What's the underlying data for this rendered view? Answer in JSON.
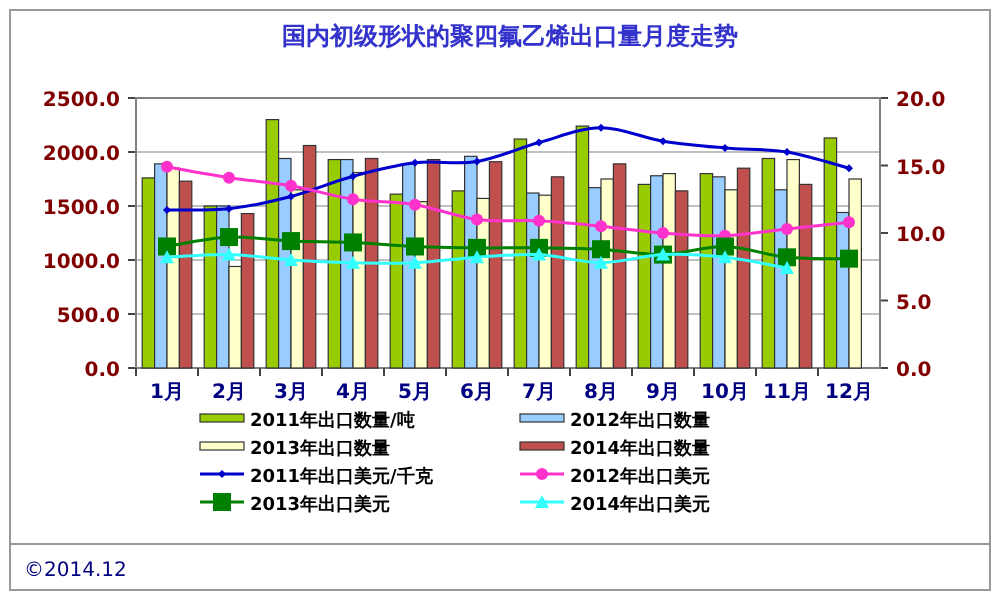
{
  "chart_data": {
    "type": "bar",
    "title": "国内初级形状的聚四氟乙烯出口量月度走势",
    "categories": [
      "1月",
      "2月",
      "3月",
      "4月",
      "5月",
      "6月",
      "7月",
      "8月",
      "9月",
      "10月",
      "11月",
      "12月"
    ],
    "series": [
      {
        "name": "2011年出口数量/吨",
        "color": "#99cc00",
        "values": [
          1760,
          1500,
          2300,
          1930,
          1610,
          1640,
          2120,
          2240,
          1700,
          1800,
          1940,
          2130
        ]
      },
      {
        "name": "2012年出口数量",
        "color": "#99ccff",
        "values": [
          1890,
          1500,
          1940,
          1930,
          1890,
          1960,
          1620,
          1670,
          1780,
          1770,
          1650,
          1440
        ]
      },
      {
        "name": "2013年出口数量",
        "color": "#ffffcc",
        "values": [
          1850,
          940,
          1650,
          1810,
          1540,
          1570,
          1600,
          1750,
          1800,
          1650,
          1930,
          1750
        ]
      },
      {
        "name": "2014年出口数量",
        "color": "#c0504d",
        "values": [
          1730,
          1430,
          2060,
          1940,
          1930,
          1910,
          1770,
          1890,
          1640,
          1850,
          1700,
          null
        ]
      },
      {
        "name": "2011年出口美元/千克",
        "type": "line",
        "axis": "y2",
        "color": "#0000cc",
        "marker": "diamond",
        "values": [
          11.7,
          11.8,
          12.7,
          14.2,
          15.2,
          15.3,
          16.7,
          17.8,
          16.8,
          16.3,
          16.0,
          14.8
        ]
      },
      {
        "name": "2012年出口美元",
        "type": "line",
        "axis": "y2",
        "color": "#ff33cc",
        "marker": "circle",
        "values": [
          14.9,
          14.1,
          13.5,
          12.5,
          12.1,
          11.0,
          10.9,
          10.5,
          10.0,
          9.8,
          10.3,
          10.8
        ]
      },
      {
        "name": "2013年出口美元",
        "type": "line",
        "axis": "y2",
        "color": "#008000",
        "marker": "square",
        "values": [
          9.0,
          9.7,
          9.4,
          9.3,
          9.0,
          8.9,
          8.9,
          8.8,
          8.4,
          9.0,
          8.2,
          8.1
        ]
      },
      {
        "name": "2014年出口美元",
        "type": "line",
        "axis": "y2",
        "color": "#33ffff",
        "marker": "triangle",
        "values": [
          8.2,
          8.4,
          8.0,
          7.8,
          7.8,
          8.2,
          8.4,
          7.8,
          8.4,
          8.2,
          7.4,
          null
        ]
      }
    ],
    "ylim": [
      0,
      2500
    ],
    "yticks": [
      {
        "value": 0,
        "label": "0.0"
      },
      {
        "value": 500,
        "label": "500.0"
      },
      {
        "value": 1000,
        "label": "1000.0"
      },
      {
        "value": 1500,
        "label": "1500.0"
      },
      {
        "value": 2000,
        "label": "2000.0"
      },
      {
        "value": 2500,
        "label": "2500.0"
      }
    ],
    "y2lim": [
      0,
      20
    ],
    "y2ticks": [
      {
        "value": 0,
        "label": "0.0"
      },
      {
        "value": 5,
        "label": "5.0"
      },
      {
        "value": 10,
        "label": "10.0"
      },
      {
        "value": 15,
        "label": "15.0"
      },
      {
        "value": 20,
        "label": "20.0"
      }
    ],
    "grid": "y",
    "legend": "bottom",
    "annotations": [
      "©2014.12"
    ]
  }
}
